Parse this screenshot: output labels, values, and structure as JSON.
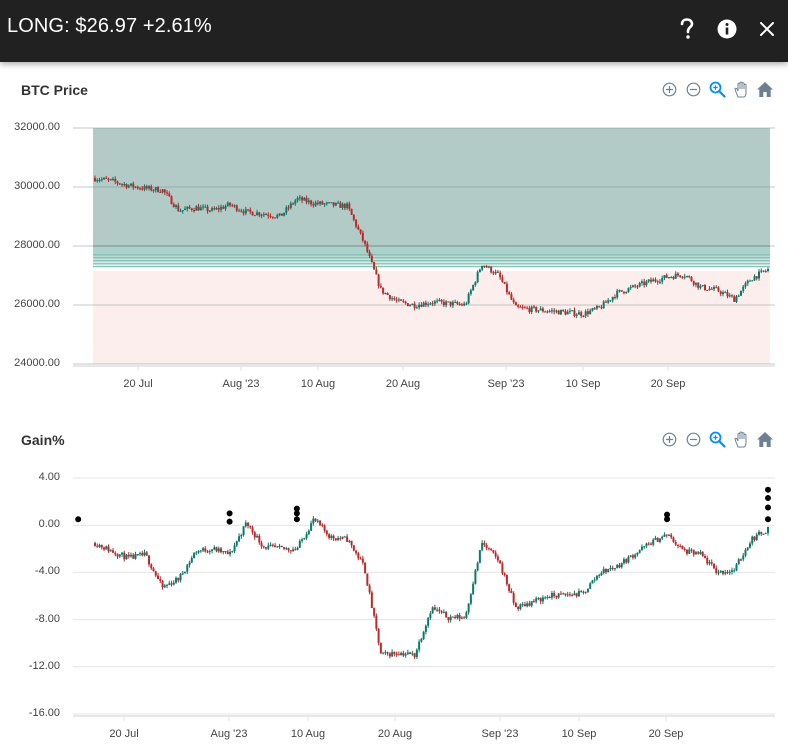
{
  "header": {
    "title": "LONG: $26.97 +2.61%",
    "actions": [
      {
        "name": "help",
        "icon": "question-icon"
      },
      {
        "name": "info",
        "icon": "info-icon"
      },
      {
        "name": "close",
        "icon": "close-icon"
      }
    ]
  },
  "toolbar": {
    "tools": [
      {
        "name": "zoom-in",
        "icon": "zoom-in-icon"
      },
      {
        "name": "zoom-out",
        "icon": "zoom-out-icon"
      },
      {
        "name": "selection-zoom",
        "icon": "magnifier-icon",
        "active": true
      },
      {
        "name": "pan",
        "icon": "hand-icon"
      },
      {
        "name": "reset",
        "icon": "home-icon"
      }
    ],
    "active_color": "#008ffb",
    "inactive_color": "#6e8192"
  },
  "colors": {
    "up": "#0b7a6a",
    "down": "#b92a2a",
    "profit_zone": "#b3cbc6",
    "loss_zone": "#fdeeee",
    "header_bg": "#212121",
    "marker": "#000000"
  },
  "chart_data": [
    {
      "type": "candlestick",
      "title": "BTC Price",
      "xlabel": "",
      "ylabel": "",
      "ylim": [
        24000,
        32000
      ],
      "yticks": [
        "32000.00",
        "30000.00",
        "28000.00",
        "26000.00",
        "24000.00"
      ],
      "xticks": [
        "20 Jul",
        "Aug '23",
        "10 Aug",
        "20 Aug",
        "Sep '23",
        "10 Sep",
        "20 Sep"
      ],
      "annotations": {
        "profit_zone": {
          "from": 27300,
          "to": 32000,
          "color": "#b3cbc6"
        },
        "loss_zone": {
          "from": 24000,
          "to": 27150,
          "color": "#fdeeee"
        },
        "target_lines": [
          28000,
          27700,
          27600,
          27500,
          27400,
          27300
        ]
      },
      "series": [
        {
          "name": "BTC",
          "x": [
            "Jul 16",
            "Jul 18",
            "Jul 20",
            "Jul 22",
            "Jul 24",
            "Jul 26",
            "Jul 28",
            "Jul 30",
            "Aug 01",
            "Aug 03",
            "Aug 05",
            "Aug 07",
            "Aug 09",
            "Aug 11",
            "Aug 13",
            "Aug 15",
            "Aug 17",
            "Aug 18",
            "Aug 20",
            "Aug 22",
            "Aug 24",
            "Aug 26",
            "Aug 28",
            "Aug 29",
            "Aug 31",
            "Sep 02",
            "Sep 04",
            "Sep 06",
            "Sep 08",
            "Sep 10",
            "Sep 12",
            "Sep 14",
            "Sep 16",
            "Sep 18",
            "Sep 20",
            "Sep 22",
            "Sep 24",
            "Sep 26",
            "Sep 28",
            "Sep 30",
            "Oct 01"
          ],
          "close": [
            30300,
            30200,
            30050,
            29950,
            29900,
            29200,
            29300,
            29200,
            29400,
            29150,
            29100,
            29000,
            29600,
            29450,
            29400,
            29350,
            28100,
            26500,
            26100,
            26000,
            26100,
            26050,
            26000,
            27400,
            27000,
            25900,
            25850,
            25800,
            25750,
            25700,
            25900,
            26400,
            26600,
            26800,
            26950,
            27050,
            26600,
            26500,
            26200,
            26900,
            27200
          ]
        }
      ]
    },
    {
      "type": "candlestick",
      "title": "Gain%",
      "xlabel": "",
      "ylabel": "",
      "ylim": [
        -16,
        4
      ],
      "yticks": [
        "4.00",
        "0.00",
        "-4.00",
        "-8.00",
        "-12.00",
        "-16.00"
      ],
      "xticks": [
        "20 Jul",
        "Aug '23",
        "10 Aug",
        "20 Aug",
        "Sep '23",
        "10 Sep",
        "20 Sep"
      ],
      "series": [
        {
          "name": "Gain%",
          "x": [
            "Jul 16",
            "Jul 18",
            "Jul 20",
            "Jul 22",
            "Jul 24",
            "Jul 26",
            "Jul 28",
            "Jul 30",
            "Aug 01",
            "Aug 03",
            "Aug 05",
            "Aug 07",
            "Aug 09",
            "Aug 11",
            "Aug 13",
            "Aug 15",
            "Aug 17",
            "Aug 18",
            "Aug 20",
            "Aug 22",
            "Aug 24",
            "Aug 26",
            "Aug 28",
            "Aug 29",
            "Aug 31",
            "Sep 02",
            "Sep 04",
            "Sep 06",
            "Sep 08",
            "Sep 10",
            "Sep 12",
            "Sep 14",
            "Sep 16",
            "Sep 18",
            "Sep 20",
            "Sep 22",
            "Sep 24",
            "Sep 26",
            "Sep 28",
            "Sep 30",
            "Oct 01"
          ],
          "close": [
            -1.5,
            -2.2,
            -2.8,
            -2.5,
            -5.3,
            -4.5,
            -2.2,
            -2.0,
            -2.5,
            0.2,
            -1.8,
            -2.0,
            -2.0,
            0.5,
            -1.0,
            -1.2,
            -3.5,
            -11.0,
            -10.8,
            -11.0,
            -7.0,
            -7.8,
            -7.8,
            -1.5,
            -3.0,
            -7.0,
            -6.5,
            -6.0,
            -5.9,
            -5.8,
            -4.0,
            -3.5,
            -2.5,
            -1.5,
            -0.8,
            -2.2,
            -2.5,
            -4.0,
            -3.8,
            -1.2,
            -0.3
          ]
        },
        {
          "name": "Markers",
          "type": "scatter",
          "points": [
            {
              "x": "Aug 01",
              "y": 0.3
            },
            {
              "x": "Aug 01",
              "y": 1.0
            },
            {
              "x": "Aug 09",
              "y": 0.5
            },
            {
              "x": "Aug 09",
              "y": 1.0
            },
            {
              "x": "Aug 09",
              "y": 1.4
            },
            {
              "x": "Sep 19",
              "y": 0.5
            },
            {
              "x": "Sep 20",
              "y": 0.9
            },
            {
              "x": "Sep 20",
              "y": 0.5
            },
            {
              "x": "Oct 01",
              "y": 0.5
            },
            {
              "x": "Oct 01",
              "y": 1.5
            },
            {
              "x": "Oct 01",
              "y": 2.3
            },
            {
              "x": "Oct 01",
              "y": 3.0
            }
          ]
        }
      ]
    }
  ],
  "panels": [
    {
      "title": "BTC Price"
    },
    {
      "title": "Gain%"
    }
  ]
}
